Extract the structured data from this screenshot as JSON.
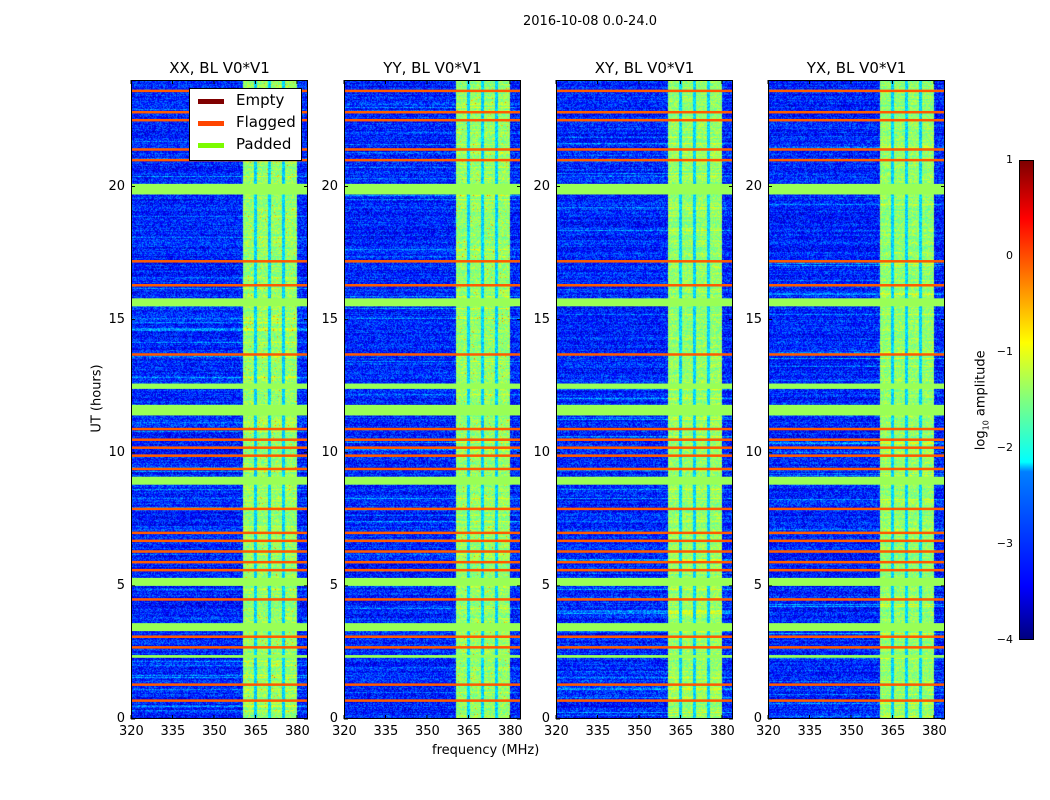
{
  "chart_data": {
    "type": "heatmap",
    "title": "2016-10-08 0.0-24.0",
    "xlabel": "frequency (MHz)",
    "ylabel": "UT (hours)",
    "xlim": [
      320,
      384
    ],
    "ylim": [
      0,
      24
    ],
    "xticks": [
      320,
      335,
      350,
      365,
      380
    ],
    "yticks": [
      0,
      5,
      10,
      15,
      20
    ],
    "panels": [
      {
        "title": "XX, BL V0*V1"
      },
      {
        "title": "YY, BL V0*V1"
      },
      {
        "title": "XY, BL V0*V1"
      },
      {
        "title": "YX, BL V0*V1"
      }
    ],
    "background_log10_amplitude": -3.2,
    "bright_band_MHz": [
      360.4,
      380
    ],
    "bright_band_gaps_MHz": [
      365,
      370,
      375
    ],
    "bright_band_log10_amplitude": -1.4,
    "flagged_hours": [
      23.6,
      22.8,
      22.5,
      21.4,
      21.0,
      17.2,
      16.3,
      13.7,
      10.9,
      10.5,
      10.2,
      9.9,
      9.4,
      7.9,
      7.0,
      6.7,
      6.3,
      5.9,
      5.6,
      4.5,
      3.1,
      2.7,
      1.3,
      0.7
    ],
    "padded_hours": [
      [
        19.7,
        20.1
      ],
      [
        15.5,
        15.8
      ],
      [
        12.4,
        12.6
      ],
      [
        11.4,
        11.8
      ],
      [
        8.8,
        9.1
      ],
      [
        5.0,
        5.3
      ],
      [
        3.3,
        3.6
      ],
      [
        2.3,
        2.4
      ]
    ],
    "legend": {
      "placement": "top-right of first panel",
      "entries": [
        {
          "label": "Empty",
          "color": "#800000"
        },
        {
          "label": "Flagged",
          "color": "#ff4500"
        },
        {
          "label": "Padded",
          "color": "#7cfc00"
        }
      ]
    },
    "colorbar": {
      "label": "log10 amplitude",
      "label_main": "log",
      "label_sub": "10",
      "label_rest": " amplitude",
      "range": [
        -4,
        1
      ],
      "ticks": [
        "1",
        "0",
        "−1",
        "−2",
        "−3",
        "−4"
      ],
      "colormap": "jet"
    }
  }
}
